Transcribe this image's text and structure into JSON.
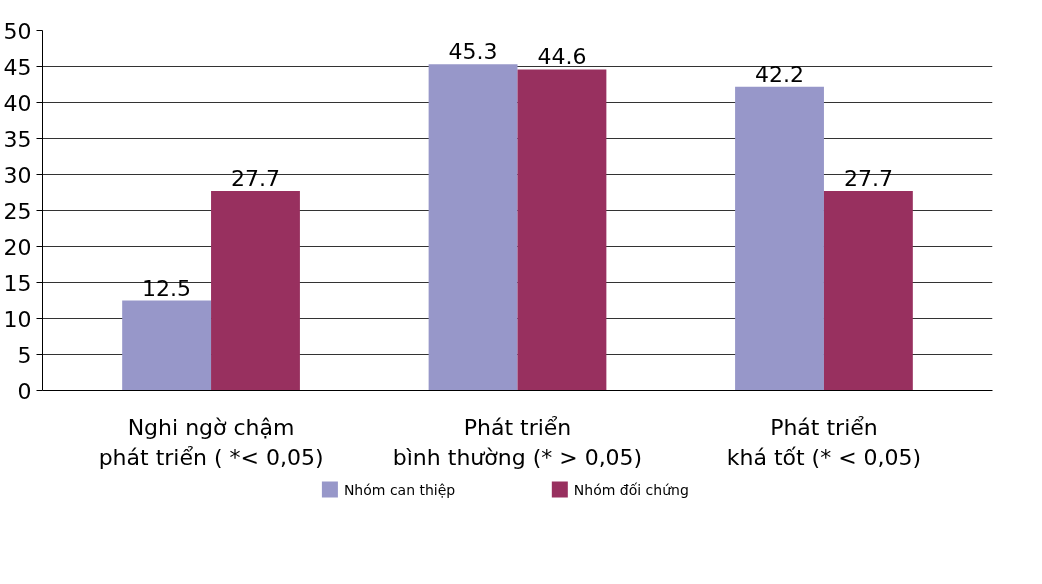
{
  "chart_data": {
    "type": "bar",
    "categories": [
      "Nghi ngờ chậm\nphát triển ( *< 0,05)",
      "Phát triển\nbình thường (* > 0,05)",
      "Phát triển\nkhá tốt (* < 0,05)"
    ],
    "series": [
      {
        "name": "Nhóm can thiệp",
        "color": "#9797c9",
        "values": [
          12.5,
          45.3,
          42.2
        ]
      },
      {
        "name": "Nhóm đối chứng",
        "color": "#98305f",
        "values": [
          27.7,
          44.6,
          27.7
        ]
      }
    ],
    "ylim": [
      0,
      50
    ],
    "yticks": [
      0,
      5,
      10,
      15,
      20,
      25,
      30,
      35,
      40,
      45,
      50
    ],
    "grid": "y",
    "legend": "bottom",
    "data_labels": true
  }
}
